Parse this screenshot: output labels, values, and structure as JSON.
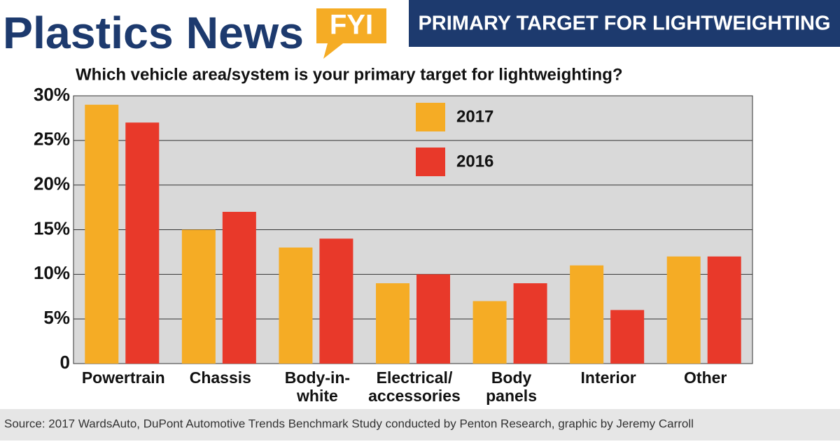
{
  "header": {
    "logo": "Plastics News",
    "badge": "FYI",
    "banner": "PRIMARY TARGET FOR LIGHTWEIGHTING"
  },
  "chart_data": {
    "type": "bar",
    "title": "Which vehicle area/system is your primary target for lightweighting?",
    "categories": [
      "Powertrain",
      "Chassis",
      "Body-in-\nwhite",
      "Electrical/\naccessories",
      "Body\npanels",
      "Interior",
      "Other"
    ],
    "series": [
      {
        "name": "2017",
        "color": "#f5ac25",
        "values": [
          29,
          15,
          13,
          9,
          7,
          11,
          12
        ]
      },
      {
        "name": "2016",
        "color": "#e8392a",
        "values": [
          27,
          17,
          14,
          10,
          9,
          6,
          12
        ]
      }
    ],
    "ylim": [
      0,
      30
    ],
    "yticks": [
      0,
      {
        "value": 5,
        "label": "5%"
      },
      {
        "value": 10,
        "label": "10%"
      },
      {
        "value": 15,
        "label": "15%"
      },
      {
        "value": 20,
        "label": "20%"
      },
      {
        "value": 25,
        "label": "25%"
      },
      {
        "value": 30,
        "label": "30%"
      }
    ],
    "grid": true,
    "source": "Source: 2017 WardsAuto, DuPont Automotive Trends Benchmark Study conducted by Penton Research, graphic by Jeremy Carroll"
  }
}
